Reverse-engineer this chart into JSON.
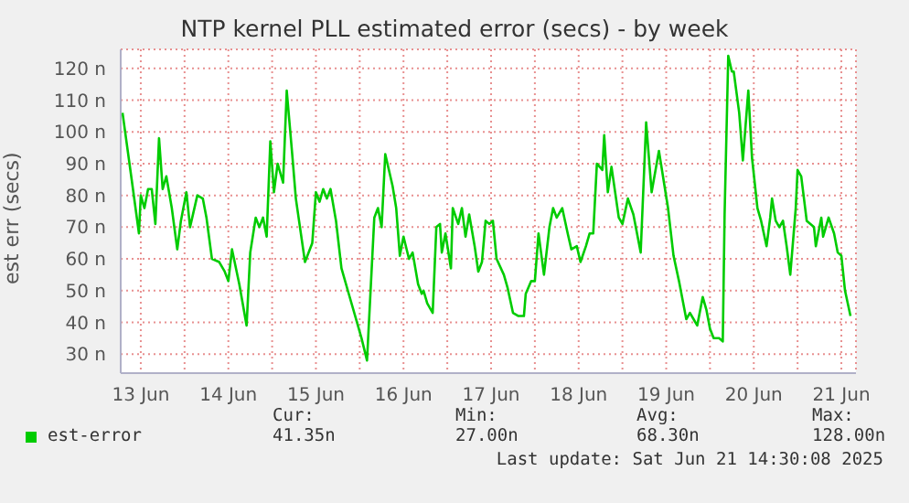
{
  "chart_data": {
    "type": "line",
    "title": "NTP kernel PLL estimated error (secs) - by week",
    "ylabel": "est err (secs)",
    "x": [
      "2025-06-13T07:00",
      "2025-06-13T09:30",
      "2025-06-13T11:30",
      "2025-06-13T12:00",
      "2025-06-13T13:00",
      "2025-06-13T14:00",
      "2025-06-13T15:00",
      "2025-06-13T16:00",
      "2025-06-13T17:00",
      "2025-06-13T18:00",
      "2025-06-13T19:00",
      "2025-06-13T20:30",
      "2025-06-13T22:00",
      "2025-06-13T23:00",
      "2025-06-14T00:30",
      "2025-06-14T01:30",
      "2025-06-14T03:30",
      "2025-06-14T05:00",
      "2025-06-14T06:00",
      "2025-06-14T07:30",
      "2025-06-14T09:30",
      "2025-06-14T11:00",
      "2025-06-14T12:00",
      "2025-06-14T13:00",
      "2025-06-14T15:00",
      "2025-06-14T17:00",
      "2025-06-14T18:00",
      "2025-06-14T19:30",
      "2025-06-14T20:30",
      "2025-06-14T21:30",
      "2025-06-14T22:30",
      "2025-06-14T23:30",
      "2025-06-15T00:30",
      "2025-06-15T01:30",
      "2025-06-15T03:00",
      "2025-06-15T04:00",
      "2025-06-15T05:30",
      "2025-06-15T06:30",
      "2025-06-15T09:00",
      "2025-06-15T11:00",
      "2025-06-15T12:00",
      "2025-06-15T13:00",
      "2025-06-15T14:00",
      "2025-06-15T15:00",
      "2025-06-15T16:00",
      "2025-06-15T17:30",
      "2025-06-15T19:00",
      "2025-06-15T21:00",
      "2025-06-15T23:30",
      "2025-06-16T00:30",
      "2025-06-16T02:00",
      "2025-06-16T04:00",
      "2025-06-16T05:00",
      "2025-06-16T06:00",
      "2025-06-16T07:00",
      "2025-06-16T09:00",
      "2025-06-16T10:00",
      "2025-06-16T11:00",
      "2025-06-16T12:00",
      "2025-06-16T13:30",
      "2025-06-16T14:30",
      "2025-06-16T16:00",
      "2025-06-16T17:00",
      "2025-06-16T17:30",
      "2025-06-16T18:30",
      "2025-06-16T20:00",
      "2025-06-16T21:00",
      "2025-06-16T22:00",
      "2025-06-16T22:30",
      "2025-06-16T23:30",
      "2025-06-17T01:00",
      "2025-06-17T01:30",
      "2025-06-17T03:00",
      "2025-06-17T04:00",
      "2025-06-17T05:00",
      "2025-06-17T06:00",
      "2025-06-17T07:30",
      "2025-06-17T08:30",
      "2025-06-17T09:30",
      "2025-06-17T10:30",
      "2025-06-17T11:30",
      "2025-06-17T12:30",
      "2025-06-17T13:30",
      "2025-06-17T15:30",
      "2025-06-17T16:30",
      "2025-06-17T18:00",
      "2025-06-17T19:30",
      "2025-06-17T21:00",
      "2025-06-17T21:30",
      "2025-06-17T23:00",
      "2025-06-18T00:00",
      "2025-06-18T01:00",
      "2025-06-18T02:30",
      "2025-06-18T04:00",
      "2025-06-18T05:00",
      "2025-06-18T06:00",
      "2025-06-18T07:30",
      "2025-06-18T09:00",
      "2025-06-18T10:00",
      "2025-06-18T11:30",
      "2025-06-18T12:30",
      "2025-06-18T14:00",
      "2025-06-18T15:00",
      "2025-06-18T16:00",
      "2025-06-18T17:00",
      "2025-06-18T18:30",
      "2025-06-18T19:00",
      "2025-06-18T20:00",
      "2025-06-18T21:00",
      "2025-06-18T22:00",
      "2025-06-18T23:00",
      "2025-06-19T00:00",
      "2025-06-19T01:30",
      "2025-06-19T03:00",
      "2025-06-19T05:00",
      "2025-06-19T06:30",
      "2025-06-19T08:00",
      "2025-06-19T10:00",
      "2025-06-19T12:30",
      "2025-06-19T14:00",
      "2025-06-19T15:30",
      "2025-06-19T17:30",
      "2025-06-19T18:30",
      "2025-06-19T19:30",
      "2025-06-19T20:30",
      "2025-06-19T22:00",
      "2025-06-19T23:00",
      "2025-06-20T00:00",
      "2025-06-20T01:00",
      "2025-06-20T02:30",
      "2025-06-20T03:30",
      "2025-06-20T04:00",
      "2025-06-20T05:00",
      "2025-06-20T06:00",
      "2025-06-20T06:30",
      "2025-06-20T08:00",
      "2025-06-20T09:00",
      "2025-06-20T10:30",
      "2025-06-20T11:30",
      "2025-06-20T13:00",
      "2025-06-20T14:00",
      "2025-06-20T15:30",
      "2025-06-20T16:30",
      "2025-06-20T17:00",
      "2025-06-20T18:00",
      "2025-06-20T19:00",
      "2025-06-20T20:00",
      "2025-06-20T21:00",
      "2025-06-20T22:00",
      "2025-06-20T23:30",
      "2025-06-21T00:00",
      "2025-06-21T01:00",
      "2025-06-21T02:30",
      "2025-06-21T04:30",
      "2025-06-21T05:00",
      "2025-06-21T06:30",
      "2025-06-21T07:00",
      "2025-06-21T08:30",
      "2025-06-21T10:00",
      "2025-06-21T11:00",
      "2025-06-21T12:00",
      "2025-06-21T13:00",
      "2025-06-21T14:30"
    ],
    "series": [
      {
        "name": "est-error",
        "color": "#00cc00",
        "values": [
          106,
          85,
          68,
          80,
          76,
          82,
          82,
          71,
          98,
          82,
          86,
          76,
          63,
          72,
          81,
          70,
          80,
          79,
          73,
          60,
          59,
          56,
          53,
          63,
          52,
          39,
          62,
          73,
          70,
          73,
          67,
          97,
          81,
          90,
          84,
          113,
          93,
          79,
          59,
          65,
          81,
          78,
          82,
          79,
          82,
          72,
          57,
          49,
          39,
          35,
          28,
          73,
          76,
          70,
          93,
          83,
          76,
          61,
          67,
          60,
          62,
          52,
          49,
          50,
          46,
          43,
          70,
          71,
          62,
          68,
          57,
          76,
          71,
          76,
          67,
          74,
          64,
          56,
          59,
          72,
          71,
          72,
          60,
          55,
          51,
          43,
          42,
          42,
          49,
          53,
          53,
          68,
          55,
          70,
          76,
          73,
          76,
          68,
          63,
          64,
          59,
          64,
          68,
          68,
          90,
          88,
          99,
          81,
          89,
          81,
          73,
          71,
          79,
          74,
          62,
          103,
          81,
          94,
          76,
          61,
          53,
          41,
          43,
          41,
          39,
          48,
          44,
          38,
          35,
          35,
          34,
          74,
          124,
          119,
          119,
          106,
          91,
          113,
          92,
          76,
          72,
          64,
          73,
          79,
          72,
          70,
          72,
          64,
          55,
          76,
          88,
          86,
          72,
          70,
          64,
          73,
          67,
          73,
          68,
          62,
          61,
          50,
          42
        ]
      }
    ],
    "xlim": [
      "2025-06-13T06:30",
      "2025-06-21T16:00"
    ],
    "xticks": [
      {
        "value": "2025-06-13T12:00",
        "label": "13 Jun"
      },
      {
        "value": "2025-06-14T00:00",
        "label": null
      },
      {
        "value": "2025-06-14T12:00",
        "label": "14 Jun"
      },
      {
        "value": "2025-06-15T00:00",
        "label": null
      },
      {
        "value": "2025-06-15T12:00",
        "label": "15 Jun"
      },
      {
        "value": "2025-06-16T00:00",
        "label": null
      },
      {
        "value": "2025-06-16T12:00",
        "label": "16 Jun"
      },
      {
        "value": "2025-06-17T00:00",
        "label": null
      },
      {
        "value": "2025-06-17T12:00",
        "label": "17 Jun"
      },
      {
        "value": "2025-06-18T00:00",
        "label": null
      },
      {
        "value": "2025-06-18T12:00",
        "label": "18 Jun"
      },
      {
        "value": "2025-06-19T00:00",
        "label": null
      },
      {
        "value": "2025-06-19T12:00",
        "label": "19 Jun"
      },
      {
        "value": "2025-06-20T00:00",
        "label": null
      },
      {
        "value": "2025-06-20T12:00",
        "label": "20 Jun"
      },
      {
        "value": "2025-06-21T00:00",
        "label": null
      },
      {
        "value": "2025-06-21T12:00",
        "label": "21 Jun"
      }
    ],
    "ylim": [
      24,
      126
    ],
    "yticks": [
      {
        "value": 30,
        "label": "30 n"
      },
      {
        "value": 40,
        "label": "40 n"
      },
      {
        "value": 50,
        "label": "50 n"
      },
      {
        "value": 60,
        "label": "60 n"
      },
      {
        "value": 70,
        "label": "70 n"
      },
      {
        "value": 80,
        "label": "80 n"
      },
      {
        "value": 90,
        "label": "90 n"
      },
      {
        "value": 100,
        "label": "100 n"
      },
      {
        "value": 110,
        "label": "110 n"
      },
      {
        "value": 120,
        "label": "120 n"
      }
    ],
    "grid": true,
    "legend": "bottom left",
    "marker": "none",
    "line_style": "solid",
    "annotations": [
      "Cur:",
      "41.35n",
      "Min:",
      "27.00n",
      "Avg:",
      "68.30n",
      "Max:",
      "128.00n",
      "Last update: Sat Jun 21 14:30:08 2025"
    ]
  }
}
